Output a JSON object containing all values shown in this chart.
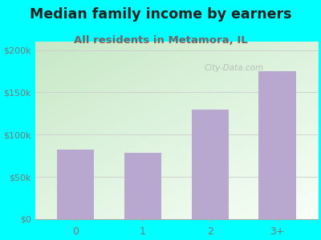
{
  "title": "Median family income by earners",
  "subtitle": "All residents in Metamora, IL",
  "categories": [
    "0",
    "1",
    "2",
    "3+"
  ],
  "values": [
    82000,
    78000,
    130000,
    175000
  ],
  "bar_color": "#b8a8d0",
  "title_fontsize": 12.5,
  "subtitle_fontsize": 9.5,
  "title_color": "#222222",
  "subtitle_color": "#7a6060",
  "outer_bg": "#00ffff",
  "plot_bg_topleft": "#c8e8c8",
  "plot_bg_bottomright": "#f8fff8",
  "ylim": [
    0,
    210000
  ],
  "yticks": [
    0,
    50000,
    100000,
    150000,
    200000
  ],
  "ytick_labels": [
    "$0",
    "$50k",
    "$100k",
    "$150k",
    "$200k"
  ],
  "watermark": "City-Data.com",
  "tick_color": "#777777",
  "grid_color": "#cccccc"
}
